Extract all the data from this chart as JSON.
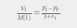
{
  "formula": "$\\frac{V_1}{M(1)} = \\frac{F_1{-}F_0}{1{+}r_1}$",
  "figwidth": 1.11,
  "figheight": 0.4,
  "dpi": 100,
  "fontsize": 9.0,
  "text_color": "#404040",
  "background_color": "#efefef"
}
